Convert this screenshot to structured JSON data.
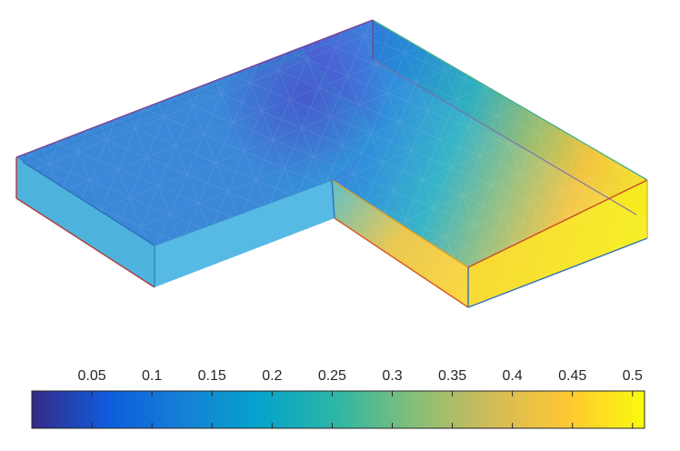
{
  "colorbar": {
    "tick_labels": [
      "0.05",
      "0.1",
      "0.15",
      "0.2",
      "0.25",
      "0.3",
      "0.35",
      "0.4",
      "0.45",
      "0.5"
    ],
    "tick_values": [
      0.05,
      0.1,
      0.15,
      0.2,
      0.25,
      0.3,
      0.35,
      0.4,
      0.45,
      0.5
    ],
    "range": [
      0.0,
      0.51
    ],
    "colormap": [
      "#352a87",
      "#0f5cdd",
      "#1481d6",
      "#06a4ca",
      "#2eb7a4",
      "#87bf77",
      "#d1bb59",
      "#fec832",
      "#f9fb0e"
    ]
  },
  "model": {
    "shape": "L-shaped slab",
    "style": "transparent surfaces with colored edges"
  }
}
